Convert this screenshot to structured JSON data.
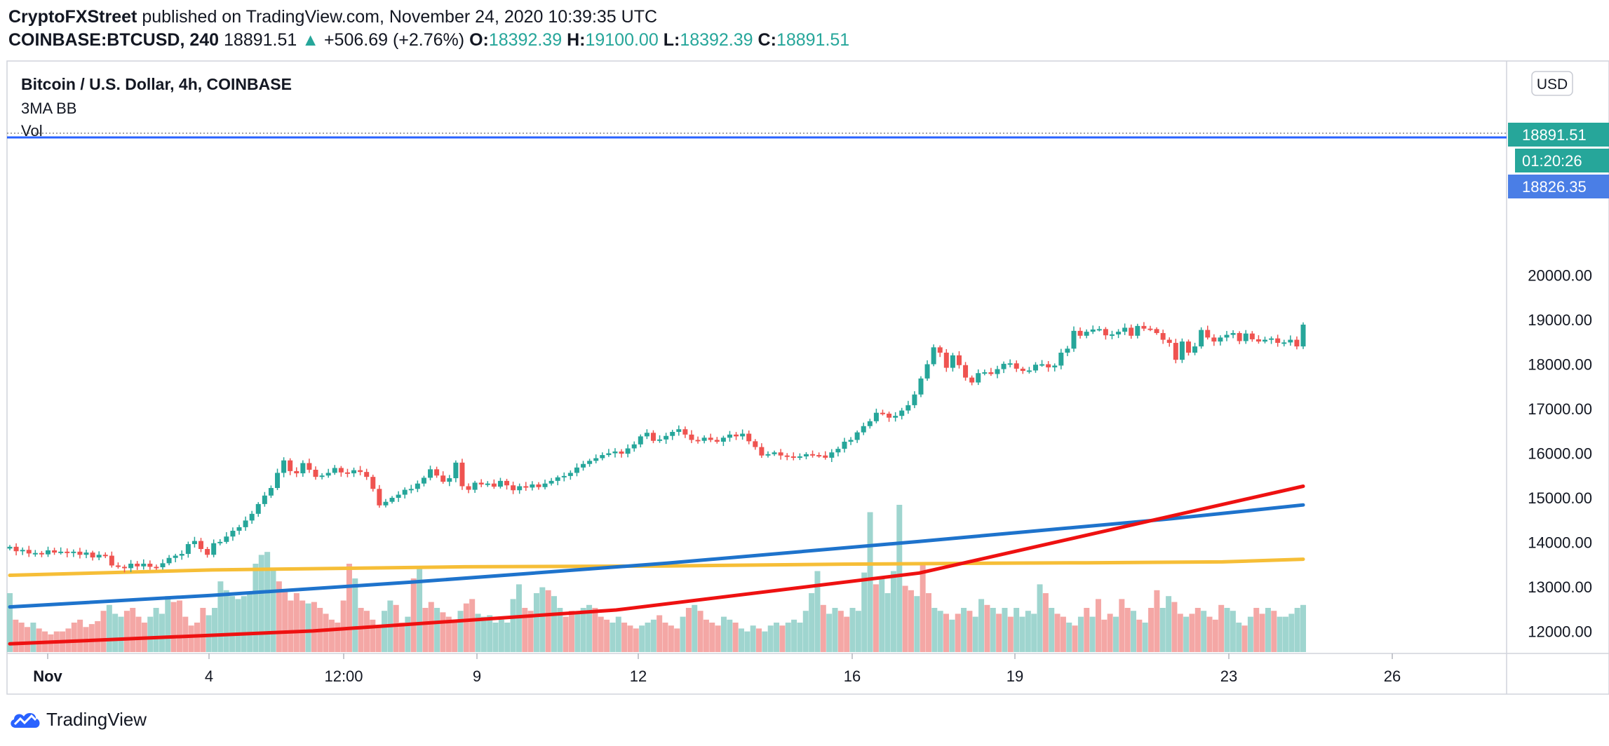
{
  "header": {
    "author": "CryptoFXStreet",
    "published": "published on TradingView.com, November 24, 2020 10:39:35 UTC",
    "symbol": "COINBASE:BTCUSD, 240",
    "last": "18891.51",
    "change_arrow": "▲",
    "change": "+506.69 (+2.76%)",
    "o_label": "O:",
    "o": "18392.39",
    "h_label": "H:",
    "h": "19100.00",
    "l_label": "L:",
    "l": "18392.39",
    "c_label": "C:",
    "c": "18891.51"
  },
  "legend": {
    "title": "Bitcoin / U.S. Dollar, 4h, COINBASE",
    "ind1": "3MA BB",
    "ind2": "Vol"
  },
  "price_axis": {
    "currency": "USD",
    "last_price": "18891.51",
    "countdown": "01:20:26",
    "ref_price": "18826.35"
  },
  "footer": {
    "logo_text": "TradingView",
    "logo_icon": "tradingview-cloud-icon"
  },
  "colors": {
    "up": "#26a69a",
    "down": "#ef5350",
    "vol_up": "#9fd5cf",
    "vol_down": "#f4a7a5",
    "ma_fast": "#f6be37",
    "ma_mid": "#1e73cc",
    "ma_slow": "#ee1111",
    "last_line": "#2962ff",
    "ref_badge": "#4a7ee6"
  },
  "chart_data": {
    "type": "candlestick",
    "title": "Bitcoin / U.S. Dollar, 4h, COINBASE",
    "interval": "4h",
    "ylim": [
      11000,
      20000
    ],
    "y_ticks": [
      12000,
      13000,
      14000,
      15000,
      16000,
      17000,
      18000,
      19000,
      20000
    ],
    "y_tick_labels": [
      "12000.00",
      "13000.00",
      "14000.00",
      "15000.00",
      "16000.00",
      "17000.00",
      "18000.00",
      "19000.00",
      "20000.00"
    ],
    "x_tick_labels": [
      "Nov",
      "4",
      "12:00",
      "9",
      "12",
      "16",
      "19",
      "23",
      "26"
    ],
    "closes": [
      13900,
      13800,
      13830,
      13750,
      13760,
      13730,
      13820,
      13770,
      13790,
      13760,
      13790,
      13720,
      13770,
      13660,
      13720,
      13700,
      13480,
      13450,
      13420,
      13520,
      13460,
      13520,
      13450,
      13440,
      13530,
      13650,
      13700,
      13740,
      13960,
      14030,
      13850,
      13720,
      13980,
      14010,
      14130,
      14260,
      14340,
      14490,
      14640,
      14860,
      15050,
      15220,
      15560,
      15840,
      15600,
      15550,
      15780,
      15630,
      15470,
      15500,
      15560,
      15670,
      15570,
      15550,
      15620,
      15580,
      15470,
      15200,
      14830,
      14910,
      15000,
      15070,
      15180,
      15200,
      15320,
      15450,
      15640,
      15500,
      15360,
      15440,
      15790,
      15260,
      15180,
      15340,
      15300,
      15320,
      15250,
      15380,
      15280,
      15170,
      15260,
      15230,
      15300,
      15240,
      15320,
      15380,
      15460,
      15490,
      15560,
      15680,
      15760,
      15830,
      15890,
      15960,
      16000,
      16040,
      15990,
      16110,
      16200,
      16380,
      16460,
      16280,
      16310,
      16390,
      16480,
      16540,
      16420,
      16300,
      16280,
      16350,
      16300,
      16260,
      16350,
      16420,
      16380,
      16440,
      16270,
      16140,
      15950,
      15980,
      16020,
      15950,
      15930,
      15920,
      15930,
      15980,
      15960,
      15950,
      15900,
      16020,
      16100,
      16260,
      16300,
      16470,
      16610,
      16720,
      16910,
      16890,
      16800,
      16840,
      16960,
      17080,
      17320,
      17680,
      18000,
      18380,
      18260,
      17920,
      18200,
      17980,
      17700,
      17590,
      17800,
      17820,
      17780,
      17890,
      18010,
      18020,
      17900,
      17850,
      17860,
      17990,
      18000,
      17930,
      17970,
      18260,
      18350,
      18750,
      18640,
      18730,
      18780,
      18790,
      18650,
      18670,
      18730,
      18820,
      18640,
      18860,
      18800,
      18790,
      18700,
      18550,
      18480,
      18100,
      18510,
      18260,
      18400,
      18770,
      18600,
      18510,
      18600,
      18660,
      18700,
      18520,
      18690,
      18560,
      18510,
      18550,
      18580,
      18480,
      18490,
      18550,
      18400,
      18890
    ],
    "candle_scale": 1.0,
    "series": [
      {
        "name": "MA fast",
        "x": [
          0,
          40,
          90,
          130,
          165,
          195,
          213,
          240,
          256
        ],
        "values": [
          13260,
          13380,
          13450,
          13470,
          13510,
          13530,
          13540,
          13560,
          13620
        ]
      },
      {
        "name": "MA mid",
        "x": [
          0,
          40,
          80,
          130,
          180,
          230,
          256
        ],
        "values": [
          12550,
          12810,
          13110,
          13530,
          14020,
          14530,
          14840
        ]
      },
      {
        "name": "MA slow",
        "x": [
          0,
          60,
          120,
          180,
          256
        ],
        "values": [
          11720,
          12010,
          12480,
          13310,
          15260
        ]
      }
    ],
    "volume": [
      {
        "v": 0.4,
        "up": true
      },
      {
        "v": 0.22,
        "up": false
      },
      {
        "v": 0.2,
        "up": false
      },
      {
        "v": 0.17,
        "up": false
      },
      {
        "v": 0.2,
        "up": true
      },
      {
        "v": 0.16,
        "up": false
      },
      {
        "v": 0.14,
        "up": false
      },
      {
        "v": 0.12,
        "up": false
      },
      {
        "v": 0.14,
        "up": false
      },
      {
        "v": 0.14,
        "up": false
      },
      {
        "v": 0.16,
        "up": false
      },
      {
        "v": 0.2,
        "up": false
      },
      {
        "v": 0.22,
        "up": false
      },
      {
        "v": 0.17,
        "up": false
      },
      {
        "v": 0.19,
        "up": false
      },
      {
        "v": 0.21,
        "up": false
      },
      {
        "v": 0.28,
        "up": false
      },
      {
        "v": 0.32,
        "up": true
      },
      {
        "v": 0.26,
        "up": true
      },
      {
        "v": 0.24,
        "up": true
      },
      {
        "v": 0.28,
        "up": false
      },
      {
        "v": 0.3,
        "up": false
      },
      {
        "v": 0.24,
        "up": false
      },
      {
        "v": 0.2,
        "up": false
      },
      {
        "v": 0.24,
        "up": true
      },
      {
        "v": 0.3,
        "up": true
      },
      {
        "v": 0.26,
        "up": true
      },
      {
        "v": 0.38,
        "up": true
      },
      {
        "v": 0.34,
        "up": false
      },
      {
        "v": 0.35,
        "up": false
      },
      {
        "v": 0.24,
        "up": false
      },
      {
        "v": 0.18,
        "up": false
      },
      {
        "v": 0.2,
        "up": false
      },
      {
        "v": 0.3,
        "up": false
      },
      {
        "v": 0.25,
        "up": true
      },
      {
        "v": 0.3,
        "up": true
      },
      {
        "v": 0.48,
        "up": true
      },
      {
        "v": 0.42,
        "up": true
      },
      {
        "v": 0.38,
        "up": true
      },
      {
        "v": 0.36,
        "up": true
      },
      {
        "v": 0.38,
        "up": true
      },
      {
        "v": 0.4,
        "up": true
      },
      {
        "v": 0.6,
        "up": true
      },
      {
        "v": 0.66,
        "up": true
      },
      {
        "v": 0.68,
        "up": true
      },
      {
        "v": 0.56,
        "up": true
      },
      {
        "v": 0.48,
        "up": false
      },
      {
        "v": 0.42,
        "up": false
      },
      {
        "v": 0.35,
        "up": false
      },
      {
        "v": 0.4,
        "up": false
      },
      {
        "v": 0.35,
        "up": false
      },
      {
        "v": 0.33,
        "up": true
      },
      {
        "v": 0.34,
        "up": false
      },
      {
        "v": 0.3,
        "up": false
      },
      {
        "v": 0.26,
        "up": false
      },
      {
        "v": 0.22,
        "up": false
      },
      {
        "v": 0.2,
        "up": false
      },
      {
        "v": 0.35,
        "up": false
      },
      {
        "v": 0.6,
        "up": false
      },
      {
        "v": 0.5,
        "up": true
      },
      {
        "v": 0.3,
        "up": false
      },
      {
        "v": 0.28,
        "up": false
      },
      {
        "v": 0.22,
        "up": false
      },
      {
        "v": 0.18,
        "up": false
      },
      {
        "v": 0.28,
        "up": true
      },
      {
        "v": 0.35,
        "up": true
      },
      {
        "v": 0.32,
        "up": false
      },
      {
        "v": 0.2,
        "up": false
      },
      {
        "v": 0.24,
        "up": true
      },
      {
        "v": 0.5,
        "up": false
      },
      {
        "v": 0.58,
        "up": true
      },
      {
        "v": 0.3,
        "up": false
      },
      {
        "v": 0.34,
        "up": false
      },
      {
        "v": 0.3,
        "up": true
      },
      {
        "v": 0.27,
        "up": false
      },
      {
        "v": 0.24,
        "up": false
      },
      {
        "v": 0.22,
        "up": false
      },
      {
        "v": 0.28,
        "up": true
      },
      {
        "v": 0.33,
        "up": false
      },
      {
        "v": 0.36,
        "up": false
      },
      {
        "v": 0.26,
        "up": true
      },
      {
        "v": 0.24,
        "up": true
      },
      {
        "v": 0.25,
        "up": true
      },
      {
        "v": 0.2,
        "up": true
      },
      {
        "v": 0.22,
        "up": true
      },
      {
        "v": 0.2,
        "up": true
      },
      {
        "v": 0.36,
        "up": true
      },
      {
        "v": 0.46,
        "up": true
      },
      {
        "v": 0.3,
        "up": false
      },
      {
        "v": 0.28,
        "up": false
      },
      {
        "v": 0.4,
        "up": true
      },
      {
        "v": 0.44,
        "up": true
      },
      {
        "v": 0.42,
        "up": false
      },
      {
        "v": 0.38,
        "up": true
      },
      {
        "v": 0.3,
        "up": true
      },
      {
        "v": 0.24,
        "up": false
      },
      {
        "v": 0.28,
        "up": false
      },
      {
        "v": 0.26,
        "up": true
      },
      {
        "v": 0.3,
        "up": true
      },
      {
        "v": 0.32,
        "up": true
      },
      {
        "v": 0.3,
        "up": false
      },
      {
        "v": 0.24,
        "up": false
      },
      {
        "v": 0.22,
        "up": false
      },
      {
        "v": 0.2,
        "up": true
      },
      {
        "v": 0.24,
        "up": true
      },
      {
        "v": 0.2,
        "up": false
      },
      {
        "v": 0.18,
        "up": false
      },
      {
        "v": 0.16,
        "up": false
      },
      {
        "v": 0.18,
        "up": true
      },
      {
        "v": 0.2,
        "up": true
      },
      {
        "v": 0.22,
        "up": true
      },
      {
        "v": 0.25,
        "up": false
      },
      {
        "v": 0.2,
        "up": false
      },
      {
        "v": 0.18,
        "up": false
      },
      {
        "v": 0.16,
        "up": false
      },
      {
        "v": 0.24,
        "up": true
      },
      {
        "v": 0.3,
        "up": false
      },
      {
        "v": 0.32,
        "up": true
      },
      {
        "v": 0.28,
        "up": false
      },
      {
        "v": 0.22,
        "up": false
      },
      {
        "v": 0.2,
        "up": false
      },
      {
        "v": 0.18,
        "up": false
      },
      {
        "v": 0.24,
        "up": true
      },
      {
        "v": 0.22,
        "up": true
      },
      {
        "v": 0.2,
        "up": false
      },
      {
        "v": 0.16,
        "up": true
      },
      {
        "v": 0.14,
        "up": true
      },
      {
        "v": 0.18,
        "up": true
      },
      {
        "v": 0.16,
        "up": false
      },
      {
        "v": 0.14,
        "up": true
      },
      {
        "v": 0.18,
        "up": true
      },
      {
        "v": 0.2,
        "up": true
      },
      {
        "v": 0.18,
        "up": false
      },
      {
        "v": 0.2,
        "up": true
      },
      {
        "v": 0.22,
        "up": true
      },
      {
        "v": 0.2,
        "up": true
      },
      {
        "v": 0.28,
        "up": true
      },
      {
        "v": 0.4,
        "up": true
      },
      {
        "v": 0.55,
        "up": true
      },
      {
        "v": 0.32,
        "up": false
      },
      {
        "v": 0.26,
        "up": true
      },
      {
        "v": 0.3,
        "up": true
      },
      {
        "v": 0.28,
        "up": false
      },
      {
        "v": 0.24,
        "up": false
      },
      {
        "v": 0.3,
        "up": true
      },
      {
        "v": 0.28,
        "up": true
      },
      {
        "v": 0.54,
        "up": true
      },
      {
        "v": 0.95,
        "up": true
      },
      {
        "v": 0.46,
        "up": false
      },
      {
        "v": 0.5,
        "up": true
      },
      {
        "v": 0.4,
        "up": true
      },
      {
        "v": 0.55,
        "up": true
      },
      {
        "v": 1.0,
        "up": true
      },
      {
        "v": 0.45,
        "up": false
      },
      {
        "v": 0.42,
        "up": false
      },
      {
        "v": 0.38,
        "up": true
      },
      {
        "v": 0.6,
        "up": false
      },
      {
        "v": 0.4,
        "up": false
      },
      {
        "v": 0.3,
        "up": true
      },
      {
        "v": 0.28,
        "up": true
      },
      {
        "v": 0.26,
        "up": false
      },
      {
        "v": 0.22,
        "up": true
      },
      {
        "v": 0.26,
        "up": false
      },
      {
        "v": 0.3,
        "up": true
      },
      {
        "v": 0.28,
        "up": false
      },
      {
        "v": 0.24,
        "up": true
      },
      {
        "v": 0.36,
        "up": true
      },
      {
        "v": 0.32,
        "up": false
      },
      {
        "v": 0.3,
        "up": true
      },
      {
        "v": 0.26,
        "up": false
      },
      {
        "v": 0.3,
        "up": true
      },
      {
        "v": 0.24,
        "up": false
      },
      {
        "v": 0.3,
        "up": true
      },
      {
        "v": 0.24,
        "up": true
      },
      {
        "v": 0.28,
        "up": true
      },
      {
        "v": 0.26,
        "up": true
      },
      {
        "v": 0.46,
        "up": true
      },
      {
        "v": 0.4,
        "up": false
      },
      {
        "v": 0.3,
        "up": true
      },
      {
        "v": 0.26,
        "up": false
      },
      {
        "v": 0.24,
        "up": false
      },
      {
        "v": 0.2,
        "up": true
      },
      {
        "v": 0.18,
        "up": false
      },
      {
        "v": 0.24,
        "up": true
      },
      {
        "v": 0.3,
        "up": false
      },
      {
        "v": 0.24,
        "up": true
      },
      {
        "v": 0.36,
        "up": false
      },
      {
        "v": 0.22,
        "up": false
      },
      {
        "v": 0.26,
        "up": false
      },
      {
        "v": 0.24,
        "up": true
      },
      {
        "v": 0.36,
        "up": false
      },
      {
        "v": 0.3,
        "up": false
      },
      {
        "v": 0.28,
        "up": true
      },
      {
        "v": 0.22,
        "up": false
      },
      {
        "v": 0.2,
        "up": true
      },
      {
        "v": 0.3,
        "up": false
      },
      {
        "v": 0.42,
        "up": false
      },
      {
        "v": 0.3,
        "up": true
      },
      {
        "v": 0.38,
        "up": true
      },
      {
        "v": 0.34,
        "up": false
      },
      {
        "v": 0.26,
        "up": false
      },
      {
        "v": 0.24,
        "up": true
      },
      {
        "v": 0.26,
        "up": false
      },
      {
        "v": 0.3,
        "up": false
      },
      {
        "v": 0.28,
        "up": true
      },
      {
        "v": 0.24,
        "up": false
      },
      {
        "v": 0.22,
        "up": false
      },
      {
        "v": 0.32,
        "up": false
      },
      {
        "v": 0.3,
        "up": true
      },
      {
        "v": 0.28,
        "up": true
      },
      {
        "v": 0.2,
        "up": true
      },
      {
        "v": 0.18,
        "up": false
      },
      {
        "v": 0.24,
        "up": true
      },
      {
        "v": 0.3,
        "up": false
      },
      {
        "v": 0.26,
        "up": false
      },
      {
        "v": 0.3,
        "up": true
      },
      {
        "v": 0.28,
        "up": false
      },
      {
        "v": 0.24,
        "up": true
      },
      {
        "v": 0.24,
        "up": true
      },
      {
        "v": 0.26,
        "up": true
      },
      {
        "v": 0.3,
        "up": true
      },
      {
        "v": 0.32,
        "up": true
      }
    ]
  }
}
